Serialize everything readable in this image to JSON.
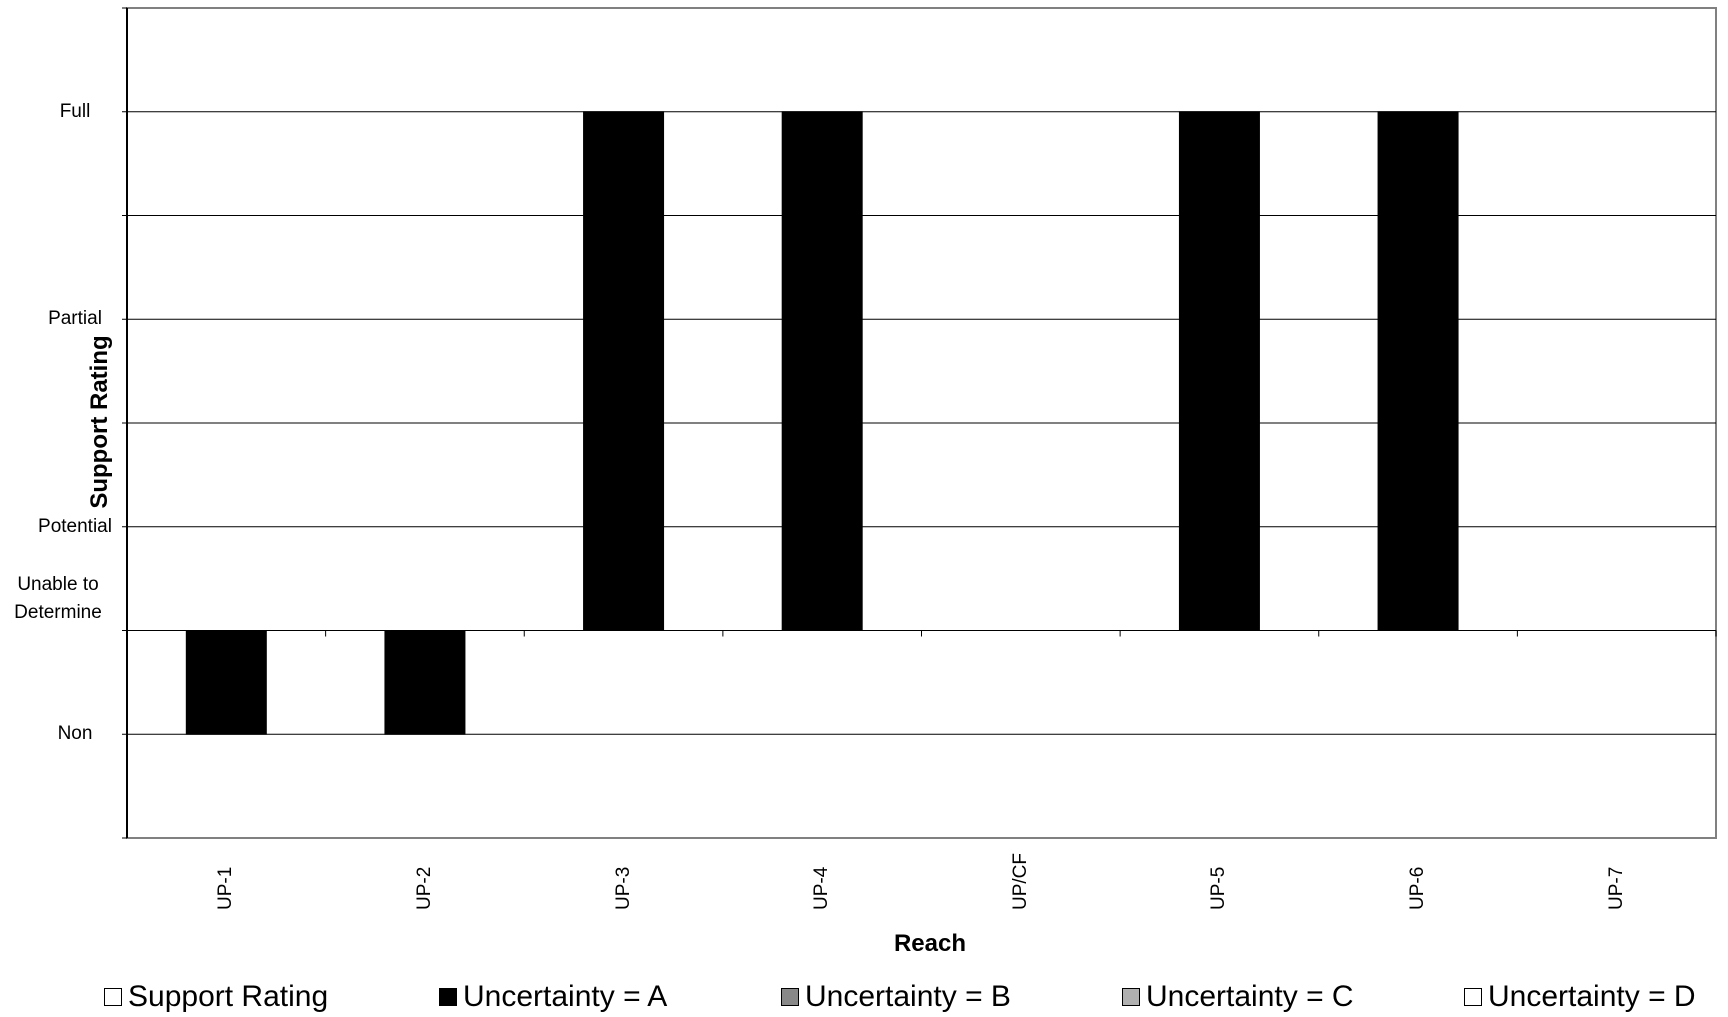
{
  "chart_data": {
    "type": "bar",
    "xlabel": "Reach",
    "ylabel": "Support Rating",
    "categories": [
      "UP-1",
      "UP-2",
      "UP-3",
      "UP-4",
      "UP/CF",
      "UP-5",
      "UP-6",
      "UP-7"
    ],
    "y_tick_labels": [
      {
        "label": "Full",
        "value": 5
      },
      {
        "label": "Partial",
        "value": 3
      },
      {
        "label": "Potential",
        "value": 1
      },
      {
        "label": "Unable to Determine",
        "value": 0
      },
      {
        "label": "Non",
        "value": -1
      }
    ],
    "ylim": [
      -2,
      6
    ],
    "grid": true,
    "series": [
      {
        "name": "Support Rating",
        "color": "#ffffff",
        "values": [
          null,
          null,
          null,
          null,
          null,
          null,
          null,
          null
        ]
      },
      {
        "name": "Uncertainty = A",
        "color": "#000000",
        "values": [
          -1,
          -1,
          5,
          5,
          null,
          5,
          5,
          null
        ]
      },
      {
        "name": "Uncertainty = B",
        "color": "#888888",
        "values": [
          null,
          null,
          null,
          null,
          null,
          null,
          null,
          null
        ]
      },
      {
        "name": "Uncertainty = C",
        "color": "#b0b0b0",
        "values": [
          null,
          null,
          null,
          null,
          null,
          null,
          null,
          null
        ]
      },
      {
        "name": "Uncertainty = D",
        "color": "#ffffff",
        "values": [
          null,
          null,
          null,
          null,
          null,
          null,
          null,
          null
        ]
      }
    ],
    "legend_position": "bottom"
  }
}
